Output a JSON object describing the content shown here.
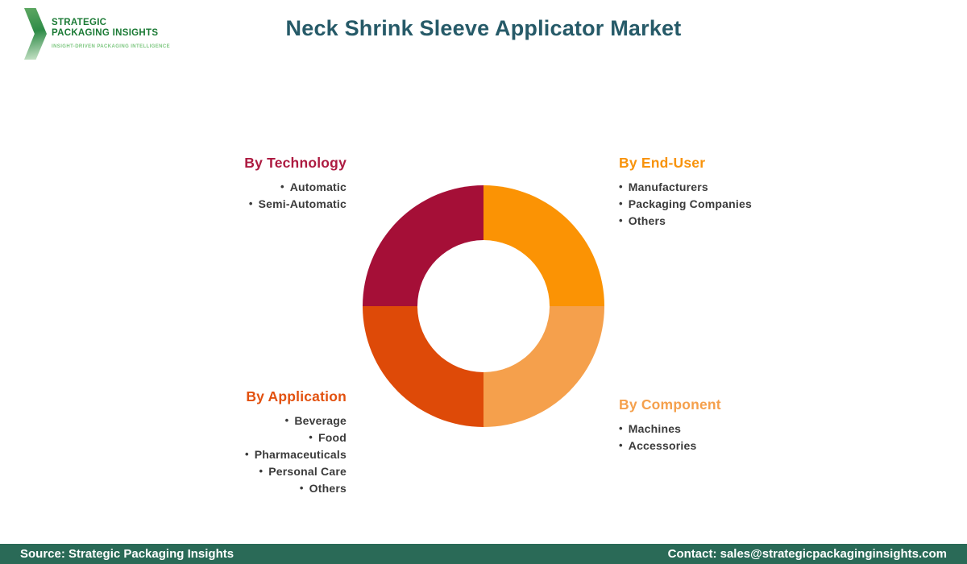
{
  "header": {
    "logo": {
      "line1": "STRATEGIC",
      "line2": "PACKAGING INSIGHTS",
      "tagline": "INSIGHT-DRIVEN PACKAGING INTELLIGENCE",
      "brand_green_dark": "#1B7A35",
      "brand_green_light": "#7BC67E"
    },
    "title": "Neck Shrink Sleeve Applicator Market",
    "title_color": "#265A68"
  },
  "chart_data": {
    "type": "pie",
    "title": "Neck Shrink Sleeve Applicator Market",
    "donut": true,
    "inner_radius_ratio": 0.55,
    "legend_position": "around",
    "segments": [
      {
        "name": "By End-User",
        "value": 25,
        "color": "#FB9304",
        "position": "top-right",
        "items": [
          "Manufacturers",
          "Packaging Companies",
          "Others"
        ]
      },
      {
        "name": "By Component",
        "value": 25,
        "color": "#F5A04C",
        "position": "bottom-right",
        "items": [
          "Machines",
          "Accessories"
        ]
      },
      {
        "name": "By Application",
        "value": 25,
        "color": "#DE4A08",
        "position": "bottom-left",
        "items": [
          "Beverage",
          "Food",
          "Pharmaceuticals",
          "Personal Care",
          "Others"
        ]
      },
      {
        "name": "By Technology",
        "value": 25,
        "color": "#A50F37",
        "position": "top-left",
        "items": [
          "Automatic",
          "Semi-Automatic"
        ]
      }
    ],
    "heading_colors": {
      "by_end_user": "#F8930B",
      "by_component": "#F5A04C",
      "by_application": "#E2510F",
      "by_technology": "#AD1B41"
    },
    "item_text_color": "#3B3B3B"
  },
  "footer": {
    "source": "Source: Strategic Packaging Insights",
    "contact": "Contact: sales@strategicpackaginginsights.com",
    "bar_color": "#2A6A57"
  }
}
